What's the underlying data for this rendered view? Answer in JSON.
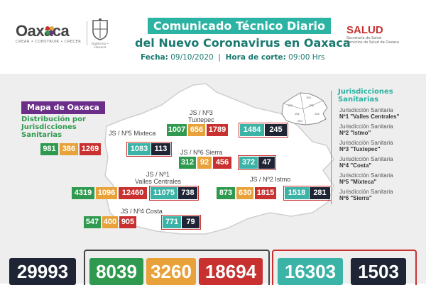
{
  "header": {
    "logo_left": "Oaxaca",
    "logo_left_tagline": "CREAR • CONSTRUIR • CRECER",
    "logo_mid_caption": "Gobierno • Oaxaca",
    "title_line1": "Comunicado Técnico Diario",
    "title_line2": "del Nuevo Coronavirus en Oaxaca",
    "date_label": "Fecha:",
    "date_value": "09/10/2020",
    "cut_label": "Hora de corte:",
    "cut_value": "09:00 Hrs",
    "salud_logo": "SALUD",
    "salud_sub1": "Secretaría de Salud",
    "salud_sub2": "Servicios de Salud de Oaxaca"
  },
  "map": {
    "badge": "Mapa de Oaxaca",
    "subtitle_lines": [
      "Distribución por",
      "Jurisdicciones",
      "Sanitarias"
    ]
  },
  "jurisdictions": [
    {
      "id": "js3",
      "label_line1": "JS / Nº3",
      "label_line2": "Tuxtepec",
      "values": [
        "1007",
        "656",
        "1789",
        "1484",
        "245"
      ]
    },
    {
      "id": "js5",
      "label_line1": "JS / Nº5 Mixteca",
      "label_line2": "",
      "values": [
        "981",
        "386",
        "1269",
        "1083",
        "113"
      ]
    },
    {
      "id": "js6",
      "label_line1": "JS / Nº6 Sierra",
      "label_line2": "",
      "values": [
        "312",
        "92",
        "456",
        "372",
        "47"
      ]
    },
    {
      "id": "js1",
      "label_line1": "JS / Nº1",
      "label_line2": "Valles Centrales",
      "values": [
        "4319",
        "1096",
        "12460",
        "11075",
        "738"
      ]
    },
    {
      "id": "js2",
      "label_line1": "JS / Nº2 Istmo",
      "label_line2": "",
      "values": [
        "873",
        "630",
        "1815",
        "1518",
        "281"
      ]
    },
    {
      "id": "js4",
      "label_line1": "JS / Nº4 Costa",
      "label_line2": "",
      "values": [
        "547",
        "400",
        "905",
        "771",
        "79"
      ]
    }
  ],
  "legend": {
    "title_lines": [
      "Jurisdicciones",
      "Sanitarias"
    ],
    "mini_map_labels": [
      "JS3",
      "JS5",
      "JS6",
      "JS1",
      "JS2",
      "JS4"
    ],
    "items": [
      {
        "prefix": "Jurisdicción Sanitaria",
        "name": "Nº1 \"Valles Centrales\""
      },
      {
        "prefix": "Jurisdicción Sanitaria",
        "name": "Nº2 \"Istmo\""
      },
      {
        "prefix": "Jurisdicción Sanitaria",
        "name": "Nº3 \"Tuxtepec\""
      },
      {
        "prefix": "Jurisdicción Sanitaria",
        "name": "Nº4 \"Costa\""
      },
      {
        "prefix": "Jurisdicción Sanitaria",
        "name": "Nº5 \"Mixteca\""
      },
      {
        "prefix": "Jurisdicción Sanitaria",
        "name": "Nº6 \"Sierra\""
      }
    ]
  },
  "totals": [
    "29993",
    "8039",
    "3260",
    "18694",
    "16303",
    "1503"
  ],
  "colors": {
    "green": "#2f9a4f",
    "yellow": "#e9a23a",
    "red": "#c8312f",
    "teal": "#3bb3a6",
    "dark": "#1f2535",
    "title_teal": "#2bb3a3",
    "badge_purple": "#6b2f8a"
  }
}
